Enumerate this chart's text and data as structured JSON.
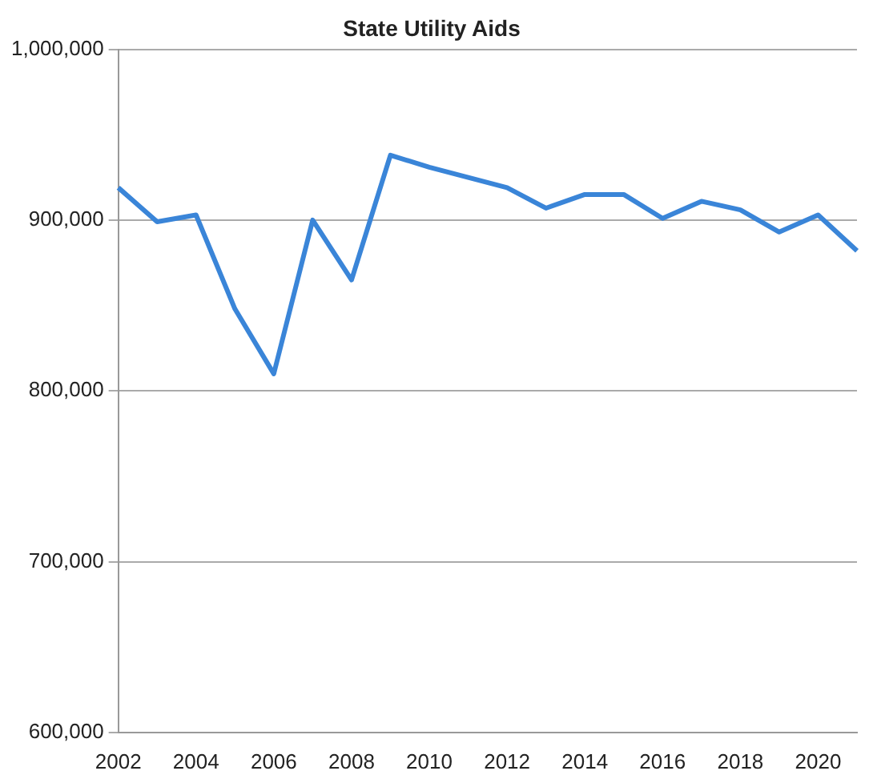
{
  "chart_data": {
    "type": "line",
    "title": "State Utility Aids",
    "categories": [
      "2002",
      null,
      "2004",
      null,
      "2006",
      null,
      "2008",
      null,
      "2010",
      null,
      "2012",
      null,
      "2014",
      null,
      "2016",
      null,
      "2018",
      null,
      "2020",
      null
    ],
    "values": [
      919000,
      899000,
      903000,
      848000,
      810000,
      900000,
      865000,
      938000,
      931000,
      925000,
      919000,
      907000,
      915000,
      915000,
      901000,
      911000,
      906000,
      893000,
      903000,
      882000
    ],
    "color": "#3a85d8",
    "ylim": [
      600000,
      1000000
    ],
    "yticks": [
      {
        "value": 600000,
        "label": "600,000"
      },
      {
        "value": 700000,
        "label": "700,000"
      },
      {
        "value": 800000,
        "label": "800,000"
      },
      {
        "value": 900000,
        "label": "900,000"
      },
      {
        "value": 1000000,
        "label": "1,000,000"
      }
    ],
    "grid": "y",
    "legend": false,
    "marker": "none",
    "line_style": "solid"
  }
}
